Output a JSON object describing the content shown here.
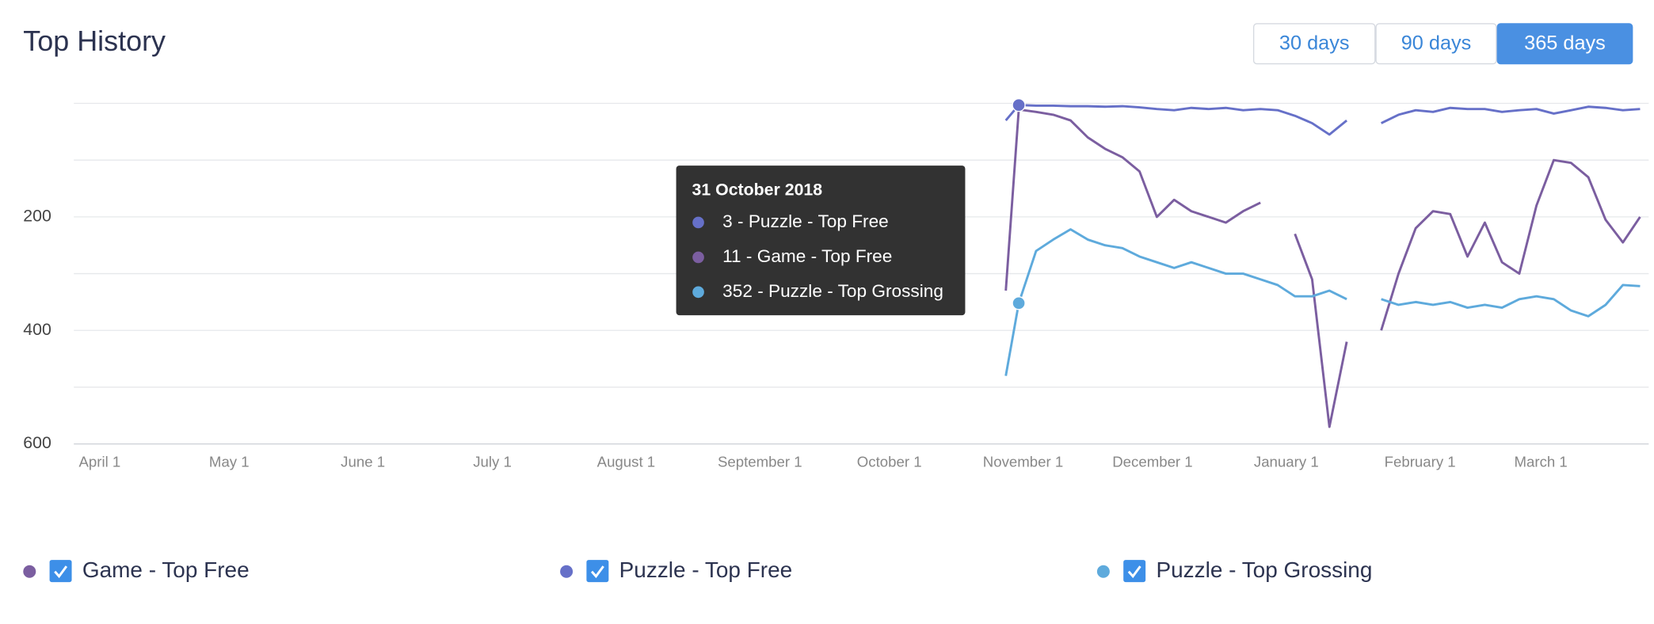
{
  "chart_data": {
    "type": "line",
    "title": "Top History",
    "ranges": [
      {
        "label": "30 days",
        "active": false
      },
      {
        "label": "90 days",
        "active": false
      },
      {
        "label": "365 days",
        "active": true
      }
    ],
    "x": [
      210,
      213,
      217,
      221,
      225,
      229,
      233,
      237,
      241,
      245,
      249,
      253,
      257,
      261,
      265,
      269,
      273,
      277,
      281,
      285,
      289,
      293,
      297,
      301,
      305,
      309,
      313,
      317,
      321,
      325,
      329,
      333,
      337,
      341,
      345,
      349,
      353,
      357
    ],
    "xlim": [
      -6,
      359
    ],
    "xticks": [
      {
        "value": 0,
        "label": "April 1"
      },
      {
        "value": 30,
        "label": "May 1"
      },
      {
        "value": 61,
        "label": "June 1"
      },
      {
        "value": 91,
        "label": "July 1"
      },
      {
        "value": 122,
        "label": "August 1"
      },
      {
        "value": 153,
        "label": "September 1"
      },
      {
        "value": 183,
        "label": "October 1"
      },
      {
        "value": 214,
        "label": "November 1"
      },
      {
        "value": 244,
        "label": "December 1"
      },
      {
        "value": 275,
        "label": "January 1"
      },
      {
        "value": 306,
        "label": "February 1"
      },
      {
        "value": 334,
        "label": "March 1"
      }
    ],
    "ylim": [
      0,
      600
    ],
    "y_inverted": true,
    "yticks": [
      200,
      400,
      600
    ],
    "ygrid": [
      0,
      100,
      200,
      300,
      400,
      500,
      600
    ],
    "grid": true,
    "series": [
      {
        "name": "Game - Top Free",
        "color": "#7b5ea0",
        "values": [
          330,
          11,
          15,
          20,
          30,
          60,
          80,
          95,
          120,
          200,
          170,
          190,
          200,
          210,
          190,
          175,
          null,
          230,
          310,
          570,
          420,
          null,
          400,
          300,
          220,
          190,
          195,
          270,
          210,
          280,
          300,
          180,
          100,
          105,
          130,
          205,
          245,
          200
        ]
      },
      {
        "name": "Puzzle - Top Free",
        "color": "#6670c8",
        "values": [
          30,
          3,
          4,
          4,
          5,
          5,
          6,
          5,
          7,
          10,
          12,
          8,
          10,
          8,
          12,
          10,
          12,
          22,
          35,
          55,
          30,
          null,
          35,
          20,
          12,
          15,
          8,
          10,
          10,
          15,
          12,
          10,
          18,
          12,
          6,
          8,
          12,
          10
        ]
      },
      {
        "name": "Puzzle - Top Grossing",
        "color": "#5eaadc",
        "values": [
          480,
          352,
          260,
          240,
          222,
          240,
          250,
          255,
          270,
          280,
          290,
          280,
          290,
          300,
          300,
          310,
          320,
          340,
          340,
          330,
          345,
          null,
          345,
          355,
          350,
          355,
          350,
          360,
          355,
          360,
          345,
          340,
          345,
          365,
          375,
          355,
          320,
          322
        ]
      }
    ],
    "tooltip": {
      "date": "31 October 2018",
      "items": [
        {
          "label": "3 - Puzzle - Top Free",
          "color": "#6670c8"
        },
        {
          "label": "11 - Game - Top Free",
          "color": "#7b5ea0"
        },
        {
          "label": "352 - Puzzle - Top Grossing",
          "color": "#5eaadc"
        }
      ]
    }
  }
}
